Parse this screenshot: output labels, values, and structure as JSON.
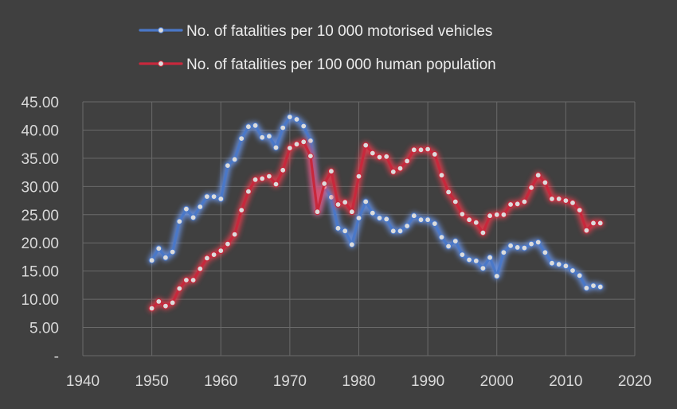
{
  "chart_data": {
    "type": "line",
    "grid": true,
    "legend_position": "top",
    "xlim": [
      1940,
      2020
    ],
    "ylim": [
      0,
      45
    ],
    "x_ticks": [
      "1940",
      "1950",
      "1960",
      "1970",
      "1980",
      "1990",
      "2000",
      "2010",
      "2020"
    ],
    "y_ticks": [
      "-",
      "5.00",
      "10.00",
      "15.00",
      "20.00",
      "25.00",
      "30.00",
      "35.00",
      "40.00",
      "45.00"
    ],
    "series": [
      {
        "name": "No. of fatalities per 10 000 motorised vehicles",
        "color": "#4a78c8",
        "glow": "#6fa0ff",
        "points": [
          [
            1950,
            16.9
          ],
          [
            1951,
            19.0
          ],
          [
            1952,
            17.4
          ],
          [
            1953,
            18.4
          ],
          [
            1954,
            23.8
          ],
          [
            1955,
            26.0
          ],
          [
            1956,
            24.5
          ],
          [
            1957,
            26.4
          ],
          [
            1958,
            28.2
          ],
          [
            1959,
            28.2
          ],
          [
            1960,
            27.8
          ],
          [
            1961,
            33.7
          ],
          [
            1962,
            34.8
          ],
          [
            1963,
            38.5
          ],
          [
            1964,
            40.6
          ],
          [
            1965,
            40.8
          ],
          [
            1966,
            38.7
          ],
          [
            1967,
            38.9
          ],
          [
            1968,
            36.9
          ],
          [
            1969,
            40.4
          ],
          [
            1970,
            42.3
          ],
          [
            1971,
            41.9
          ],
          [
            1972,
            40.7
          ],
          [
            1973,
            38.1
          ],
          [
            1974,
            25.6
          ],
          [
            1975,
            29.9
          ],
          [
            1976,
            28.1
          ],
          [
            1977,
            22.6
          ],
          [
            1978,
            22.1
          ],
          [
            1979,
            19.7
          ],
          [
            1980,
            24.4
          ],
          [
            1981,
            27.3
          ],
          [
            1982,
            25.3
          ],
          [
            1983,
            24.4
          ],
          [
            1984,
            24.2
          ],
          [
            1985,
            22.1
          ],
          [
            1986,
            22.1
          ],
          [
            1987,
            23.0
          ],
          [
            1988,
            24.8
          ],
          [
            1989,
            24.1
          ],
          [
            1990,
            24.1
          ],
          [
            1991,
            23.4
          ],
          [
            1992,
            21.0
          ],
          [
            1993,
            19.4
          ],
          [
            1994,
            20.3
          ],
          [
            1995,
            17.9
          ],
          [
            1996,
            17.0
          ],
          [
            1997,
            16.8
          ],
          [
            1998,
            15.5
          ],
          [
            1999,
            17.4
          ],
          [
            2000,
            14.1
          ],
          [
            2001,
            18.3
          ],
          [
            2002,
            19.5
          ],
          [
            2003,
            19.2
          ],
          [
            2004,
            19.1
          ],
          [
            2005,
            19.8
          ],
          [
            2006,
            20.1
          ],
          [
            2007,
            18.3
          ],
          [
            2008,
            16.4
          ],
          [
            2009,
            16.2
          ],
          [
            2010,
            15.9
          ],
          [
            2011,
            15.1
          ],
          [
            2012,
            14.2
          ],
          [
            2013,
            12.0
          ],
          [
            2014,
            12.4
          ],
          [
            2015,
            12.2
          ]
        ]
      },
      {
        "name": "No. of fatalities per 100 000 human population",
        "color": "#c8283c",
        "glow": "#ff3c50",
        "points": [
          [
            1950,
            8.4
          ],
          [
            1951,
            9.6
          ],
          [
            1952,
            8.8
          ],
          [
            1953,
            9.4
          ],
          [
            1954,
            11.9
          ],
          [
            1955,
            13.4
          ],
          [
            1956,
            13.4
          ],
          [
            1957,
            15.4
          ],
          [
            1958,
            17.3
          ],
          [
            1959,
            17.9
          ],
          [
            1960,
            18.6
          ],
          [
            1961,
            19.8
          ],
          [
            1962,
            21.5
          ],
          [
            1963,
            25.8
          ],
          [
            1964,
            29.1
          ],
          [
            1965,
            31.2
          ],
          [
            1966,
            31.4
          ],
          [
            1967,
            31.8
          ],
          [
            1968,
            30.4
          ],
          [
            1969,
            32.9
          ],
          [
            1970,
            36.8
          ],
          [
            1971,
            37.5
          ],
          [
            1972,
            37.9
          ],
          [
            1973,
            35.4
          ],
          [
            1974,
            25.5
          ],
          [
            1975,
            30.5
          ],
          [
            1976,
            32.7
          ],
          [
            1977,
            26.8
          ],
          [
            1978,
            27.2
          ],
          [
            1979,
            25.5
          ],
          [
            1980,
            31.8
          ],
          [
            1981,
            37.3
          ],
          [
            1982,
            35.9
          ],
          [
            1983,
            35.2
          ],
          [
            1984,
            35.3
          ],
          [
            1985,
            32.6
          ],
          [
            1986,
            33.2
          ],
          [
            1987,
            34.5
          ],
          [
            1988,
            36.5
          ],
          [
            1989,
            36.5
          ],
          [
            1990,
            36.6
          ],
          [
            1991,
            35.7
          ],
          [
            1992,
            32.0
          ],
          [
            1993,
            29.0
          ],
          [
            1994,
            27.3
          ],
          [
            1995,
            25.1
          ],
          [
            1996,
            24.1
          ],
          [
            1997,
            23.6
          ],
          [
            1998,
            21.8
          ],
          [
            1999,
            24.8
          ],
          [
            2000,
            25.0
          ],
          [
            2001,
            25.0
          ],
          [
            2002,
            26.8
          ],
          [
            2003,
            26.9
          ],
          [
            2004,
            27.3
          ],
          [
            2005,
            29.8
          ],
          [
            2006,
            32.0
          ],
          [
            2007,
            30.7
          ],
          [
            2008,
            27.8
          ],
          [
            2009,
            27.8
          ],
          [
            2010,
            27.5
          ],
          [
            2011,
            27.1
          ],
          [
            2012,
            25.8
          ],
          [
            2013,
            22.2
          ],
          [
            2014,
            23.5
          ],
          [
            2015,
            23.5
          ]
        ]
      }
    ]
  }
}
